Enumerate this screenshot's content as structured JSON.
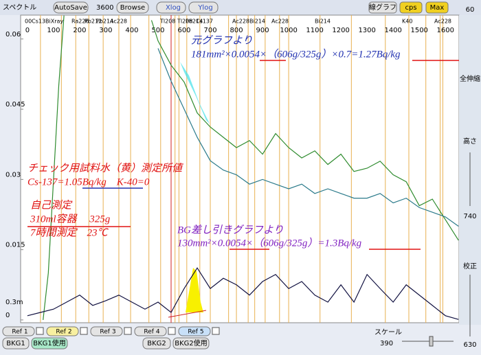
{
  "toolbar": {
    "title": "スペクトル",
    "autosave": "AutoSave",
    "time": "3600",
    "browse": "Browse",
    "xlog": "Xlog",
    "ylog": "Ylog",
    "mode": "線グラフ",
    "unit": "cps",
    "max": "Max"
  },
  "side_panel": {
    "top": "60",
    "fit": "全伸縮",
    "height": "高さ",
    "height_value": "740",
    "calib": "校正",
    "calib_value": "630"
  },
  "bottom": {
    "refs": [
      "Ref 1",
      "Ref 2",
      "Ref 3",
      "Ref 4",
      "Ref 5"
    ],
    "bkg1": "BKG1",
    "bkg1_use": "BKG1使用",
    "bkg2": "BKG2",
    "bkg2_use": "BKG2使用",
    "scale": "スケール",
    "scale_value": "390"
  },
  "chart_data": {
    "type": "line",
    "xlim": [
      -26,
      1652
    ],
    "ylim": [
      -0.0006,
      0.0651
    ],
    "xticks": [
      0,
      100,
      200,
      300,
      400,
      500,
      600,
      700,
      800,
      900,
      1000,
      1100,
      1200,
      1300,
      1400,
      1500,
      1600
    ],
    "yticks": [
      0,
      0.015,
      0.03,
      0.045,
      0.06
    ],
    "lower_axis_label": "0.3m",
    "nuclides": [
      "00Cs13",
      "BiXray",
      "Ra226",
      "Pb212",
      "Pb214",
      "Ac228",
      "Tl208",
      "Tl208",
      "Pb214",
      "Cs137",
      "Ac228",
      "Bi214",
      "Ac228",
      "Bi214",
      "K40",
      "Ac228"
    ],
    "series": [
      {
        "color": "#2e8b2e",
        "x": [
          60,
          80,
          100,
          120,
          140
        ],
        "values": [
          0,
          0.01,
          0.03,
          0.05,
          0.065
        ]
      },
      {
        "color": "#2e8b2e",
        "x": [
          475,
          500,
          550,
          600,
          650,
          700,
          750,
          800,
          850,
          900,
          950,
          1000,
          1050,
          1100,
          1150,
          1200,
          1250,
          1300,
          1350,
          1400,
          1450,
          1500,
          1550,
          1600,
          1650
        ],
        "values": [
          0.064,
          0.0596,
          0.0544,
          0.0508,
          0.0442,
          0.0412,
          0.039,
          0.0368,
          0.0383,
          0.0354,
          0.0398,
          0.0368,
          0.0346,
          0.0361,
          0.0332,
          0.0354,
          0.0317,
          0.0324,
          0.0339,
          0.031,
          0.0295,
          0.0244,
          0.0258,
          0.0214,
          0.017
        ]
      },
      {
        "color": "#2a7a8a",
        "x": [
          500,
          550,
          600,
          650,
          700,
          750,
          800,
          850,
          900,
          950,
          1000,
          1050,
          1100,
          1150,
          1200,
          1250,
          1300,
          1350,
          1400,
          1450,
          1500,
          1550,
          1600,
          1650
        ],
        "values": [
          0.058,
          0.051,
          0.045,
          0.039,
          0.034,
          0.032,
          0.031,
          0.029,
          0.03,
          0.029,
          0.028,
          0.029,
          0.027,
          0.028,
          0.027,
          0.026,
          0.026,
          0.027,
          0.025,
          0.026,
          0.024,
          0.023,
          0.022,
          0.02
        ]
      },
      {
        "color": "#101040",
        "x": [
          0,
          50,
          100,
          150,
          200,
          250,
          300,
          350,
          400,
          450,
          500,
          550,
          600,
          650,
          700,
          750,
          800,
          850,
          900,
          950,
          1000,
          1050,
          1100,
          1150,
          1200,
          1250,
          1300,
          1350,
          1400,
          1450,
          1500,
          1550,
          1600,
          1650
        ],
        "values": [
          0.0009,
          0.0016,
          0.0023,
          0.0038,
          0.0053,
          0.0031,
          0.0041,
          0.0053,
          0.0038,
          0.0023,
          0.0038,
          0.0016,
          0.0067,
          0.0111,
          0.0067,
          0.0089,
          0.0075,
          0.0053,
          0.0082,
          0.0097,
          0.0067,
          0.0082,
          0.0053,
          0.0038,
          0.0075,
          0.0038,
          0.0097,
          0.0067,
          0.0038,
          0.0075,
          0.0053,
          0.0031,
          0.0009,
          0.0001
        ]
      }
    ]
  },
  "annotations": {
    "orig_title": "元グラフより",
    "orig_formula": "181mm²×0.0054×（606g/325g）×0.7=1.27Bq/kg",
    "check_title": "チェック用試料水（黄）測定所値",
    "check_values": "Cs-137=1.05Bq/kg　K-40=0",
    "self_title": "自己測定",
    "self_container": "310ml容器　 325g",
    "self_time": "7時間測定　23℃",
    "bg_title": "BG差し引きグラフより",
    "bg_formula": "130mm²×0.0054×（606g/325g）=1.3Bq/kg"
  }
}
